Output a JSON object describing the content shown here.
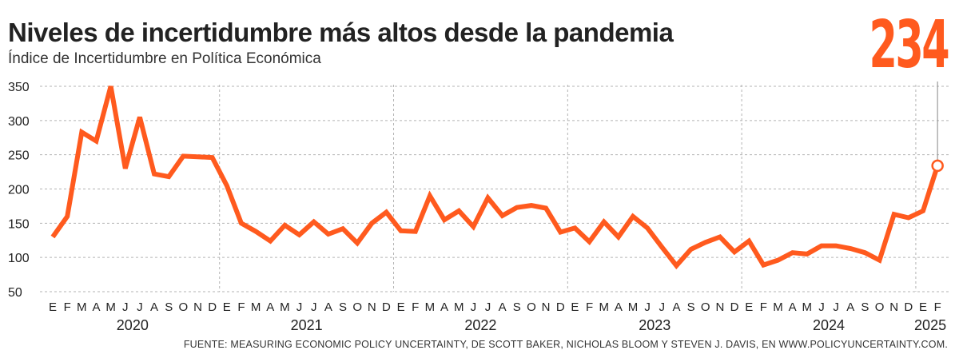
{
  "title": "Niveles de incertidumbre más altos desde la pandemia",
  "subtitle": "Índice de Incertidumbre en Política Económica",
  "highlight": {
    "value": "234",
    "color": "#ff5a1e"
  },
  "source": "FUENTE: MEASURING ECONOMIC POLICY UNCERTAINTY, DE SCOTT BAKER, NICHOLAS BLOOM Y STEVEN J. DAVIS, EN WWW.POLICYUNCERTAINTY.COM.",
  "colors": {
    "line": "#ff5a1e",
    "grid": "#b3b3b3",
    "text": "#222222"
  },
  "chart_data": {
    "type": "line",
    "title": "Niveles de incertidumbre más altos desde la pandemia",
    "subtitle": "Índice de Incertidumbre en Política Económica",
    "ylim": [
      50,
      350
    ],
    "yticks": [
      50,
      100,
      150,
      200,
      250,
      300,
      350
    ],
    "y_grid": "dashed",
    "x_grid": "dashed at year boundaries",
    "month_labels": [
      "E",
      "F",
      "M",
      "A",
      "M",
      "J",
      "J",
      "A",
      "S",
      "O",
      "N",
      "D",
      "E",
      "F",
      "M",
      "A",
      "M",
      "J",
      "J",
      "A",
      "S",
      "O",
      "N",
      "D",
      "E",
      "F",
      "M",
      "A",
      "M",
      "J",
      "J",
      "A",
      "S",
      "O",
      "N",
      "D",
      "E",
      "F",
      "M",
      "A",
      "M",
      "J",
      "J",
      "A",
      "S",
      "O",
      "N",
      "D",
      "E",
      "F",
      "M",
      "A",
      "M",
      "J",
      "J",
      "A",
      "S",
      "O",
      "N",
      "D",
      "E",
      "F"
    ],
    "years": [
      {
        "label": "2020",
        "start_index": 0,
        "months": 12
      },
      {
        "label": "2021",
        "start_index": 12,
        "months": 12
      },
      {
        "label": "2022",
        "start_index": 24,
        "months": 12
      },
      {
        "label": "2023",
        "start_index": 36,
        "months": 12
      },
      {
        "label": "2024",
        "start_index": 48,
        "months": 12
      },
      {
        "label": "2025",
        "start_index": 60,
        "months": 2
      }
    ],
    "series": [
      {
        "values": [
          130,
          160,
          283,
          270,
          350,
          230,
          305,
          222,
          218,
          248,
          247,
          246,
          205,
          150,
          138,
          124,
          147,
          133,
          152,
          134,
          142,
          121,
          150,
          166,
          139,
          138,
          190,
          155,
          168,
          145,
          187,
          161,
          173,
          176,
          172,
          137,
          143,
          123,
          152,
          130,
          160,
          143,
          115,
          88,
          112,
          122,
          130,
          108,
          124,
          89,
          96,
          107,
          105,
          117,
          117,
          113,
          107,
          96,
          163,
          158,
          168,
          234
        ]
      }
    ],
    "last_point": {
      "label": "F 2025",
      "value": 234
    }
  }
}
